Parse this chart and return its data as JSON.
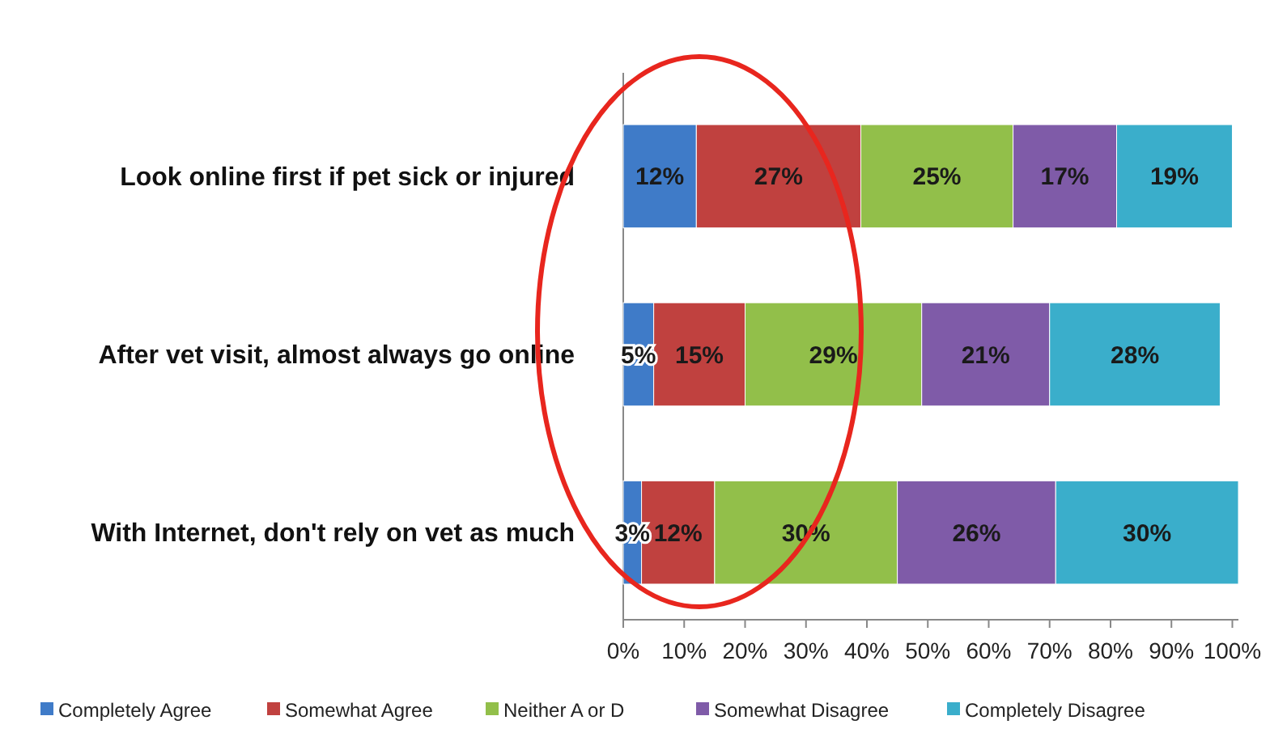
{
  "chart_data": {
    "type": "bar",
    "orientation": "horizontal",
    "stacked": true,
    "legend": "bottom",
    "grid": false,
    "categories": [
      "Look online first if pet sick or injured",
      "After vet visit, almost always go online",
      "With Internet, don't rely on vet as much"
    ],
    "series": [
      {
        "name": "Completely Agree",
        "color": "#3f7bc8",
        "values": [
          12,
          5,
          3
        ],
        "value_labels": [
          "12%",
          "5%",
          "3%"
        ]
      },
      {
        "name": "Somewhat Agree",
        "color": "#c0413f",
        "values": [
          27,
          15,
          12
        ],
        "value_labels": [
          "27%",
          "15%",
          "12%"
        ]
      },
      {
        "name": "Neither A or D",
        "color": "#92bf4a",
        "values": [
          25,
          29,
          30
        ],
        "value_labels": [
          "25%",
          "29%",
          "30%"
        ]
      },
      {
        "name": "Somewhat Disagree",
        "color": "#7f5ba8",
        "values": [
          17,
          21,
          26
        ],
        "value_labels": [
          "17%",
          "21%",
          "26%"
        ]
      },
      {
        "name": "Completely Disagree",
        "color": "#3aaecb",
        "values": [
          19,
          28,
          30
        ],
        "value_labels": [
          "19%",
          "28%",
          "30%"
        ]
      }
    ],
    "xlim": [
      0,
      101
    ],
    "xticks": [
      {
        "value": 0,
        "label": "0%"
      },
      {
        "value": 10,
        "label": "10%"
      },
      {
        "value": 20,
        "label": "20%"
      },
      {
        "value": 30,
        "label": "30%"
      },
      {
        "value": 40,
        "label": "40%"
      },
      {
        "value": 50,
        "label": "50%"
      },
      {
        "value": 60,
        "label": "60%"
      },
      {
        "value": 70,
        "label": "70%"
      },
      {
        "value": 80,
        "label": "80%"
      },
      {
        "value": 90,
        "label": "90%"
      },
      {
        "value": 100,
        "label": "100%"
      }
    ]
  }
}
